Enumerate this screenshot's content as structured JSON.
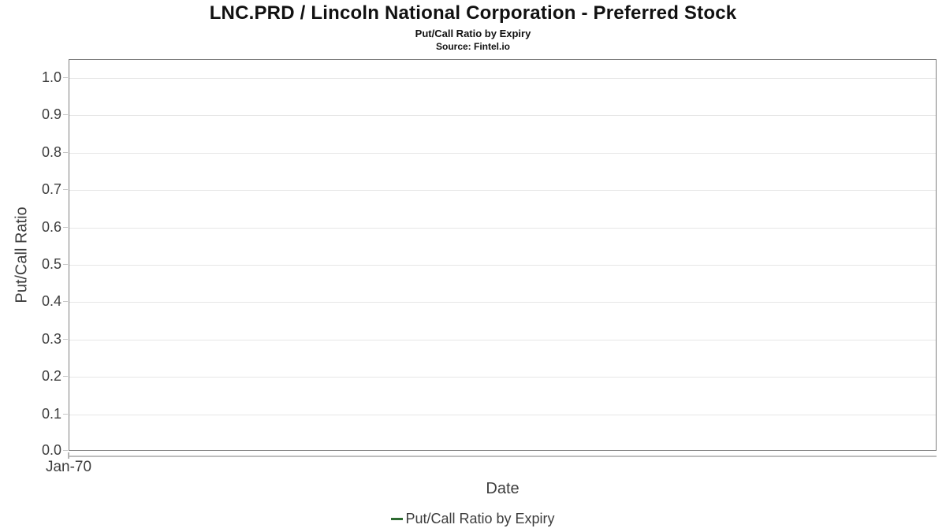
{
  "header": {
    "title": "LNC.PRD / Lincoln National Corporation - Preferred Stock",
    "subtitle": "Put/Call Ratio by Expiry",
    "source": "Source: Fintel.io"
  },
  "chart_data": {
    "type": "line",
    "title": "LNC.PRD / Lincoln National Corporation - Preferred Stock",
    "subtitle": "Put/Call Ratio by Expiry",
    "source": "Source: Fintel.io",
    "xlabel": "Date",
    "ylabel": "Put/Call Ratio",
    "x_ticks": [
      "Jan-70"
    ],
    "y_ticks": [
      "0.0",
      "0.1",
      "0.2",
      "0.3",
      "0.4",
      "0.5",
      "0.6",
      "0.7",
      "0.8",
      "0.9",
      "1.0"
    ],
    "ylim": [
      0.0,
      1.05
    ],
    "grid": true,
    "legend_position": "bottom",
    "series": [
      {
        "name": "Put/Call Ratio by Expiry",
        "color": "#2e6b31",
        "x": [],
        "values": []
      }
    ]
  },
  "legend": {
    "items": [
      {
        "label": "Put/Call Ratio by Expiry",
        "color": "#2e6b31"
      }
    ]
  },
  "colors": {
    "plot_border": "#7f7f7f",
    "gridline": "#e6e6e6",
    "axis_line": "#bdbdbd",
    "tick_mark": "#c6c6c6",
    "axis_text": "#3d3d3d",
    "title_text": "#111111",
    "series_green": "#2e6b31"
  }
}
